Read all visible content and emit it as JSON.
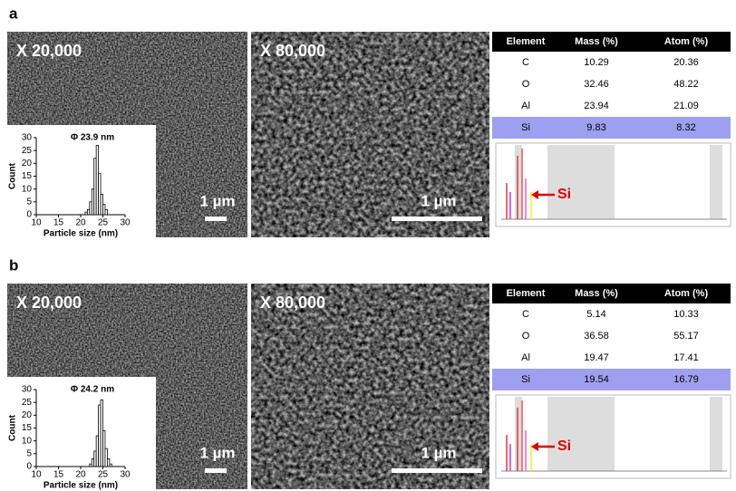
{
  "panels": [
    {
      "label": "a",
      "sem": [
        {
          "magnification": "X 20,000",
          "scale_bar": "1 µm"
        },
        {
          "magnification": "X 80,000",
          "scale_bar": "1 µm"
        }
      ],
      "histogram": {
        "type": "histogram",
        "title": "Φ 23.9 nm",
        "x_label": "Particle size (nm)",
        "y_label": "Count",
        "bins": [
          21,
          21.5,
          22,
          22.5,
          23,
          23.5,
          24,
          24.5,
          25,
          25.5,
          26
        ],
        "values": [
          1,
          2,
          5,
          10,
          22,
          27,
          16,
          8,
          4,
          2
        ],
        "xlim": [
          10,
          30
        ],
        "xticks": [
          10,
          15,
          20,
          25,
          30
        ],
        "ylim": [
          0,
          30
        ],
        "yticks": [
          0,
          5,
          10,
          15,
          20,
          25,
          30
        ]
      },
      "table": {
        "header": [
          "Element",
          "Mass (%)",
          "Atom (%)"
        ],
        "rows": [
          [
            "C",
            "10.29",
            "20.36"
          ],
          [
            "O",
            "32.46",
            "48.22"
          ],
          [
            "Al",
            "23.94",
            "21.09"
          ],
          [
            "Si",
            "9.83",
            "8.32"
          ]
        ]
      },
      "spectrum_label": "Si"
    },
    {
      "label": "b",
      "sem": [
        {
          "magnification": "X 20,000",
          "scale_bar": "1 µm"
        },
        {
          "magnification": "X 80,000",
          "scale_bar": "1 µm"
        }
      ],
      "histogram": {
        "type": "histogram",
        "title": "Φ 24.2 nm",
        "x_label": "Particle size (nm)",
        "y_label": "Count",
        "bins": [
          22,
          22.5,
          23,
          23.5,
          24,
          24.5,
          25,
          25.5,
          26,
          26.5,
          27
        ],
        "values": [
          1,
          3,
          6,
          12,
          24,
          26,
          14,
          7,
          3,
          1
        ],
        "xlim": [
          10,
          30
        ],
        "xticks": [
          10,
          15,
          20,
          25,
          30
        ],
        "ylim": [
          0,
          30
        ],
        "yticks": [
          0,
          5,
          10,
          15,
          20,
          25,
          30
        ]
      },
      "table": {
        "header": [
          "Element",
          "Mass (%)",
          "Atom (%)"
        ],
        "rows": [
          [
            "C",
            "5.14",
            "10.33"
          ],
          [
            "O",
            "36.58",
            "55.17"
          ],
          [
            "Al",
            "19.47",
            "17.41"
          ],
          [
            "Si",
            "19.54",
            "16.79"
          ]
        ]
      },
      "spectrum_label": "Si"
    }
  ]
}
